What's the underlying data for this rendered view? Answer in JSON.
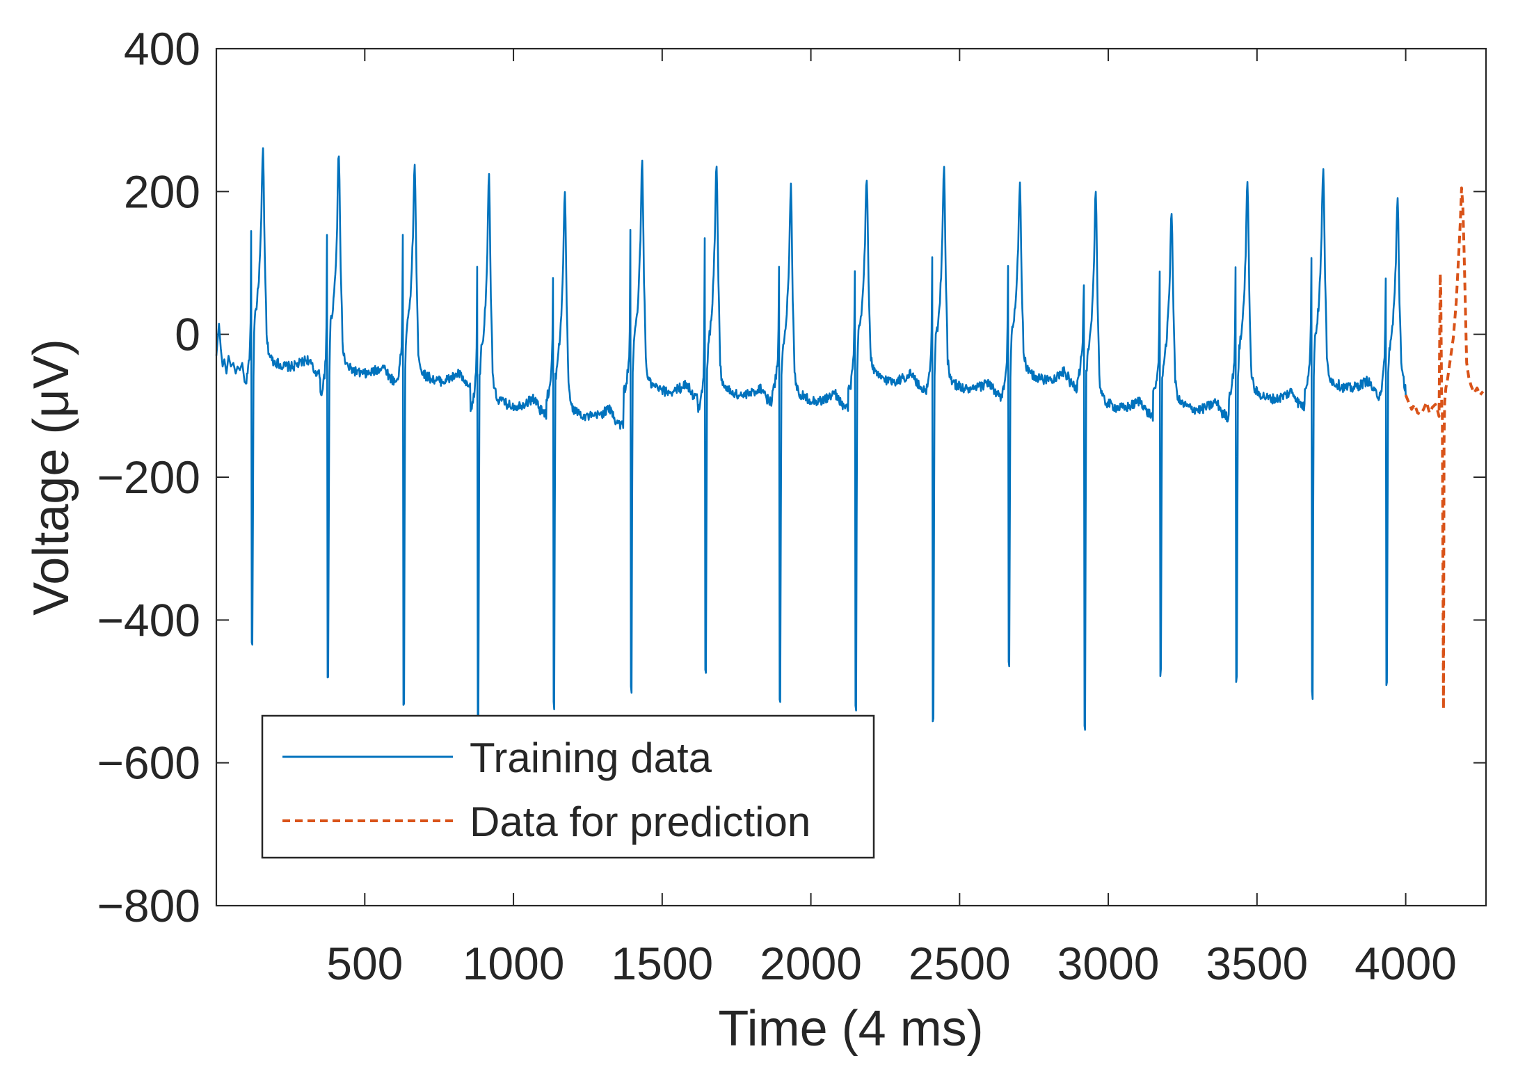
{
  "chart_data": {
    "type": "line",
    "title": "",
    "xlabel": "Time (4 ms)",
    "ylabel": "Voltage (μV)",
    "xlim": [
      1,
      4270
    ],
    "ylim": [
      -800,
      400
    ],
    "xticks": [
      500,
      1000,
      1500,
      2000,
      2500,
      3000,
      3500,
      4000
    ],
    "xtick_labels": [
      "500",
      "1000",
      "1500",
      "2000",
      "2500",
      "3000",
      "3500",
      "4000"
    ],
    "yticks": [
      400,
      200,
      0,
      -200,
      -400,
      -600,
      -800
    ],
    "ytick_labels": [
      "400",
      "200",
      "0",
      "−200",
      "−400",
      "−600",
      "−800"
    ],
    "grid": false,
    "legend_position": "bottom-left",
    "beat": {
      "template": [
        [
          0,
          -70
        ],
        [
          8,
          -60
        ],
        [
          14,
          -40
        ],
        [
          18,
          -20
        ],
        [
          21,
          40
        ],
        [
          23,
          -20
        ],
        [
          25,
          -250
        ],
        [
          27,
          -420
        ],
        [
          29,
          -100
        ],
        [
          31,
          -10
        ],
        [
          34,
          25
        ],
        [
          40,
          40
        ],
        [
          46,
          65
        ],
        [
          52,
          110
        ],
        [
          56,
          160
        ],
        [
          59,
          220
        ],
        [
          61,
          265
        ],
        [
          63,
          250
        ],
        [
          65,
          190
        ],
        [
          68,
          100
        ],
        [
          72,
          40
        ],
        [
          78,
          0
        ],
        [
          86,
          -25
        ],
        [
          96,
          -35
        ],
        [
          110,
          -40
        ],
        [
          130,
          -48
        ],
        [
          160,
          -50
        ],
        [
          190,
          -40
        ],
        [
          210,
          -30
        ],
        [
          225,
          -45
        ],
        [
          232,
          -60
        ],
        [
          240,
          -62
        ],
        [
          250,
          -70
        ]
      ],
      "start_at": 96,
      "prespike_offset": [
        0,
        -15,
        5,
        -35,
        -20,
        -10,
        -35,
        -10,
        -10,
        -10,
        -15,
        10,
        -15,
        -15,
        -5,
        -15,
        -20
      ],
      "s_min": [
        -430,
        -480,
        -515,
        -540,
        -520,
        -500,
        -470,
        -510,
        -525,
        -535,
        -465,
        -555,
        -475,
        -485,
        -505,
        -490,
        -460
      ],
      "r_peak": [
        138,
        135,
        140,
        98,
        80,
        142,
        140,
        100,
        85,
        110,
        100,
        75,
        88,
        88,
        108,
        85,
        85
      ],
      "t_peak": [
        265,
        262,
        245,
        226,
        208,
        247,
        248,
        216,
        228,
        238,
        218,
        212,
        182,
        222,
        243,
        200,
        195
      ],
      "baseline": [
        -40,
        -50,
        -60,
        -95,
        -110,
        -75,
        -80,
        -88,
        -60,
        -72,
        -58,
        -98,
        -100,
        -85,
        -70,
        -80,
        -80
      ],
      "rr": [
        255,
        255,
        250,
        255,
        260,
        250,
        250,
        255,
        260,
        255,
        255,
        255,
        255,
        255,
        250,
        255,
        255
      ]
    },
    "series": [
      {
        "name": "Training data",
        "color": "#0072BD",
        "style": "solid",
        "x_range": [
          1,
          4000
        ]
      },
      {
        "name": "Data for prediction",
        "color": "#D95319",
        "style": "dashed",
        "x_range": [
          4000,
          4260
        ],
        "points": [
          [
            4000,
            -85
          ],
          [
            4010,
            -95
          ],
          [
            4020,
            -105
          ],
          [
            4030,
            -98
          ],
          [
            4040,
            -110
          ],
          [
            4050,
            -112
          ],
          [
            4060,
            -105
          ],
          [
            4070,
            -95
          ],
          [
            4080,
            -110
          ],
          [
            4090,
            -102
          ],
          [
            4100,
            -98
          ],
          [
            4108,
            -108
          ],
          [
            4112,
            -115
          ],
          [
            4116,
            85
          ],
          [
            4118,
            60
          ],
          [
            4121,
            -100
          ],
          [
            4123,
            -110
          ],
          [
            4125,
            -300
          ],
          [
            4127,
            -525
          ],
          [
            4129,
            -150
          ],
          [
            4131,
            -95
          ],
          [
            4135,
            -75
          ],
          [
            4140,
            -65
          ],
          [
            4150,
            -35
          ],
          [
            4160,
            -5
          ],
          [
            4170,
            45
          ],
          [
            4178,
            110
          ],
          [
            4184,
            160
          ],
          [
            4188,
            205
          ],
          [
            4192,
            180
          ],
          [
            4196,
            120
          ],
          [
            4200,
            50
          ],
          [
            4205,
            -40
          ],
          [
            4212,
            -60
          ],
          [
            4220,
            -72
          ],
          [
            4230,
            -82
          ],
          [
            4240,
            -75
          ],
          [
            4250,
            -85
          ],
          [
            4260,
            -80
          ]
        ]
      }
    ]
  }
}
